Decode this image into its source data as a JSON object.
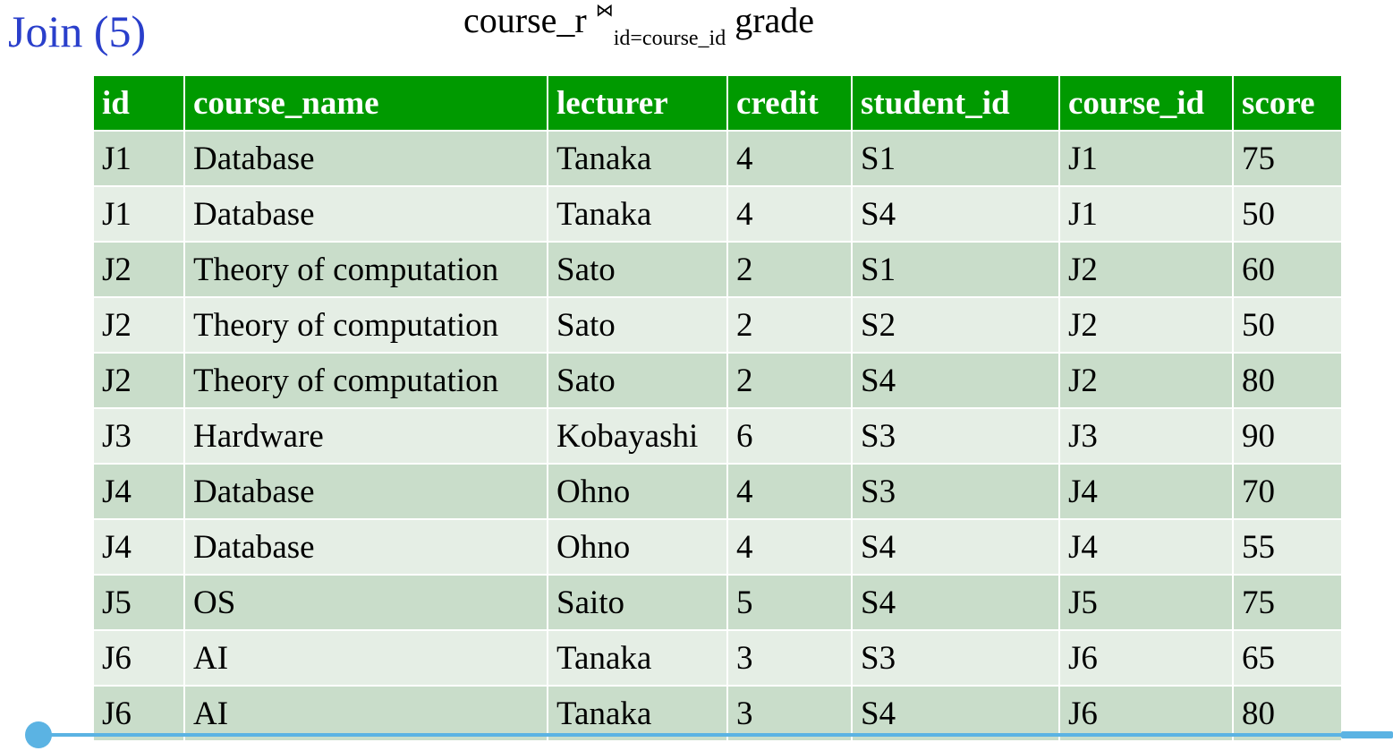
{
  "slide": {
    "title": "Join (5)",
    "formula": {
      "left": "course_r",
      "operator": "⋈",
      "condition": "id=course_id",
      "right": "grade"
    }
  },
  "table": {
    "columns": [
      "id",
      "course_name",
      "lecturer",
      "credit",
      "student_id",
      "course_id",
      "score"
    ],
    "rows": [
      [
        "J1",
        "Database",
        "Tanaka",
        "4",
        "S1",
        "J1",
        "75"
      ],
      [
        "J1",
        "Database",
        "Tanaka",
        "4",
        "S4",
        "J1",
        "50"
      ],
      [
        "J2",
        "Theory of computation",
        "Sato",
        "2",
        "S1",
        "J2",
        "60"
      ],
      [
        "J2",
        "Theory of computation",
        "Sato",
        "2",
        "S2",
        "J2",
        "50"
      ],
      [
        "J2",
        "Theory of computation",
        "Sato",
        "2",
        "S4",
        "J2",
        "80"
      ],
      [
        "J3",
        "Hardware",
        "Kobayashi",
        "6",
        "S3",
        "J3",
        "90"
      ],
      [
        "J4",
        "Database",
        "Ohno",
        "4",
        "S3",
        "J4",
        "70"
      ],
      [
        "J4",
        "Database",
        "Ohno",
        "4",
        "S4",
        "J4",
        "55"
      ],
      [
        "J5",
        "OS",
        "Saito",
        "5",
        "S4",
        "J5",
        "75"
      ],
      [
        "J6",
        "AI",
        "Tanaka",
        "3",
        "S3",
        "J6",
        "65"
      ],
      [
        "J6",
        "AI",
        "Tanaka",
        "3",
        "S4",
        "J6",
        "80"
      ]
    ]
  },
  "colors": {
    "title": "#2a3fcb",
    "header_bg": "#009a00",
    "row_odd": "#c9ddca",
    "row_even": "#e5eee5",
    "accent_line": "#5bb3e3"
  }
}
